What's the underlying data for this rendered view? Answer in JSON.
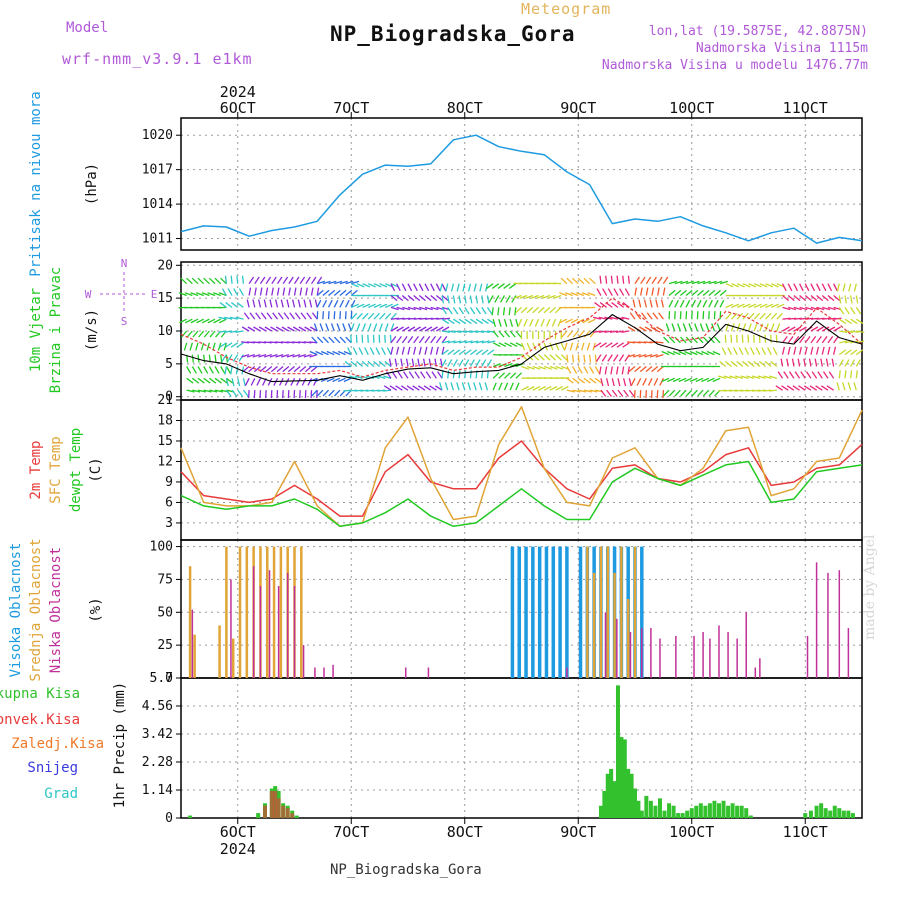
{
  "header": {
    "model_label": "Model",
    "model_value": "wrf-nmm_v3.9.1 e1km",
    "station_title": "NP_Biogradska_Gora",
    "meteogram_label": "Meteogram",
    "lonlat": "lon,lat (19.5875E, 42.8875N)",
    "altitude": "Nadmorska Visina 1115m",
    "model_altitude": "Nadmorska Visina u modelu 1476.77m"
  },
  "footer": {
    "station": "NP_Biogradska_Gora",
    "watermark": "made by Angel"
  },
  "colors": {
    "pressure": "#1e9be0",
    "wind_speed": "#000000",
    "wind_gust": "#e83a3a",
    "temp_2m": "#e83a3a",
    "temp_sfc": "#e0a437",
    "dewpt": "#22c922",
    "cloud_high": "#1e9be0",
    "cloud_mid": "#e0a437",
    "cloud_low": "#c0309a",
    "precip_total": "#33c12e",
    "precip_conv": "#e83a3a",
    "precip_frozen": "#f07a2a",
    "precip_snow": "#3a3ae0",
    "precip_graupel": "#2ec6c6",
    "violet_text": "#b05ad8"
  },
  "chart_data": [
    {
      "type": "line",
      "panel": "pressure",
      "ylabel_colored": "Pritisak na nivou mora",
      "unit": "(hPa)",
      "ylim": [
        1010,
        1021.5
      ],
      "yticks": [
        1011,
        1014,
        1017,
        1020
      ],
      "x_day": [
        5.5,
        5.7,
        5.9,
        6.1,
        6.3,
        6.5,
        6.7,
        6.9,
        7.1,
        7.3,
        7.5,
        7.7,
        7.9,
        8.1,
        8.3,
        8.5,
        8.7,
        8.9,
        9.1,
        9.3,
        9.5,
        9.7,
        9.9,
        10.1,
        10.3,
        10.5,
        10.7,
        10.9,
        11.1,
        11.3,
        11.5
      ],
      "values": [
        1011.6,
        1012.1,
        1012.0,
        1011.2,
        1011.7,
        1012.0,
        1012.5,
        1014.8,
        1016.6,
        1017.4,
        1017.3,
        1017.5,
        1019.6,
        1020.0,
        1019.0,
        1018.6,
        1018.3,
        1016.8,
        1015.7,
        1012.3,
        1012.7,
        1012.5,
        1012.9,
        1012.1,
        1011.5,
        1010.8,
        1011.5,
        1011.9,
        1010.6,
        1011.1,
        1010.8
      ]
    },
    {
      "type": "line",
      "panel": "wind",
      "ylabel_colored": "10m Vjetar Brzina i Pravac",
      "unit": "(m/s)",
      "compass": "N E S W",
      "ylim": [
        -0.5,
        20.5
      ],
      "yticks": [
        0,
        5,
        10,
        15,
        20
      ],
      "x_day": [
        5.5,
        5.7,
        5.9,
        6.1,
        6.3,
        6.5,
        6.7,
        6.9,
        7.1,
        7.3,
        7.5,
        7.7,
        7.9,
        8.1,
        8.3,
        8.5,
        8.7,
        8.9,
        9.1,
        9.3,
        9.5,
        9.7,
        9.9,
        10.1,
        10.3,
        10.5,
        10.7,
        10.9,
        11.1,
        11.3,
        11.5
      ],
      "series": [
        {
          "name": "speed",
          "values": [
            6.5,
            5.5,
            5.0,
            3.5,
            2.3,
            2.4,
            2.5,
            3.2,
            2.5,
            3.5,
            4.2,
            4.4,
            3.5,
            3.8,
            4.0,
            5.0,
            7.5,
            8.5,
            9.5,
            12.5,
            10.5,
            8.0,
            7.0,
            7.5,
            11.0,
            10.0,
            8.5,
            8.0,
            11.5,
            9.0,
            8.0
          ]
        },
        {
          "name": "gust",
          "values": [
            9.5,
            8.0,
            6.0,
            4.5,
            3.5,
            3.5,
            3.5,
            4.0,
            3.0,
            4.0,
            4.5,
            5.0,
            4.0,
            4.5,
            4.5,
            6.0,
            8.5,
            10.5,
            12.0,
            15.0,
            13.0,
            10.0,
            8.5,
            9.0,
            13.0,
            12.0,
            10.0,
            9.5,
            13.5,
            11.0,
            8.0
          ]
        }
      ],
      "direction_bands": [
        {
          "from": 5.55,
          "to": 5.9,
          "color": "#22c922"
        },
        {
          "from": 5.9,
          "to": 6.1,
          "color": "#2ec6c6"
        },
        {
          "from": 6.1,
          "to": 6.7,
          "color": "#8b2ad8"
        },
        {
          "from": 6.7,
          "to": 7.0,
          "color": "#2a6ae0"
        },
        {
          "from": 7.0,
          "to": 7.35,
          "color": "#2ec6c6"
        },
        {
          "from": 7.35,
          "to": 7.8,
          "color": "#8b2ad8"
        },
        {
          "from": 7.8,
          "to": 8.25,
          "color": "#2ec6c6"
        },
        {
          "from": 8.25,
          "to": 8.5,
          "color": "#22c922"
        },
        {
          "from": 8.5,
          "to": 8.9,
          "color": "#c8d82a"
        },
        {
          "from": 8.9,
          "to": 9.2,
          "color": "#f0b22a"
        },
        {
          "from": 9.2,
          "to": 9.5,
          "color": "#e8287a"
        },
        {
          "from": 9.5,
          "to": 9.8,
          "color": "#f05a2a"
        },
        {
          "from": 9.8,
          "to": 10.3,
          "color": "#22c922"
        },
        {
          "from": 10.3,
          "to": 10.8,
          "color": "#c8d82a"
        },
        {
          "from": 10.8,
          "to": 11.3,
          "color": "#e8287a"
        },
        {
          "from": 11.3,
          "to": 11.5,
          "color": "#c8d82a"
        }
      ]
    },
    {
      "type": "line",
      "panel": "temperature",
      "ylabel_colored": [
        "2m Temp",
        "SFC Temp",
        "dewpt Temp"
      ],
      "unit": "(C)",
      "ylim": [
        0.5,
        21
      ],
      "yticks": [
        3,
        6,
        9,
        12,
        15,
        18,
        21
      ],
      "x_day": [
        5.5,
        5.7,
        5.9,
        6.1,
        6.3,
        6.5,
        6.7,
        6.9,
        7.1,
        7.3,
        7.5,
        7.7,
        7.9,
        8.1,
        8.3,
        8.5,
        8.7,
        8.9,
        9.1,
        9.3,
        9.5,
        9.7,
        9.9,
        10.1,
        10.3,
        10.5,
        10.7,
        10.9,
        11.1,
        11.3,
        11.5
      ],
      "series": [
        {
          "name": "2m Temp",
          "values": [
            10.5,
            7.0,
            6.5,
            6.0,
            6.5,
            8.5,
            6.5,
            4.0,
            4.0,
            10.5,
            13.0,
            9.0,
            8.0,
            8.0,
            12.5,
            15.0,
            11.0,
            8.0,
            6.5,
            11.0,
            11.5,
            9.5,
            9.0,
            10.5,
            13.0,
            14.0,
            8.5,
            9.0,
            11.0,
            11.5,
            14.5
          ]
        },
        {
          "name": "SFC Temp",
          "values": [
            14.0,
            6.0,
            5.5,
            5.5,
            6.0,
            12.0,
            5.5,
            2.5,
            3.0,
            14.0,
            18.5,
            9.5,
            3.5,
            4.0,
            14.5,
            20.0,
            11.0,
            6.0,
            5.5,
            12.5,
            14.0,
            9.5,
            8.5,
            11.0,
            16.5,
            17.0,
            7.0,
            8.0,
            12.0,
            12.5,
            19.5
          ]
        },
        {
          "name": "dewpt Temp",
          "values": [
            7.0,
            5.5,
            5.0,
            5.5,
            5.5,
            6.5,
            5.0,
            2.5,
            3.0,
            4.5,
            6.5,
            4.0,
            2.5,
            3.0,
            5.5,
            8.0,
            5.5,
            3.5,
            3.5,
            9.0,
            11.0,
            9.5,
            8.5,
            10.0,
            11.5,
            12.0,
            6.0,
            6.5,
            10.5,
            11.0,
            11.5
          ]
        }
      ]
    },
    {
      "type": "bar",
      "panel": "cloud_cover",
      "ylabel_colored": [
        "Visoka Oblacnost",
        "Srednja Oblacnost",
        "Niska Oblacnost"
      ],
      "unit": "(%)",
      "ylim": [
        0,
        105
      ],
      "yticks": [
        0,
        25,
        50,
        75,
        100
      ],
      "series": [
        {
          "name": "Visoka Oblacnost",
          "x_day": [
            8.42,
            8.48,
            8.54,
            8.6,
            8.66,
            8.72,
            8.78,
            8.84,
            8.9,
            9.02,
            9.08,
            9.14,
            9.2,
            9.26,
            9.32,
            9.38,
            9.44,
            9.5,
            9.56
          ],
          "values": [
            100,
            100,
            100,
            100,
            100,
            100,
            100,
            100,
            100,
            100,
            100,
            100,
            100,
            100,
            100,
            100,
            100,
            100,
            100
          ]
        },
        {
          "name": "Srednja Oblacnost",
          "x_day": [
            5.58,
            5.62,
            5.84,
            5.9,
            5.96,
            6.02,
            6.08,
            6.14,
            6.2,
            6.26,
            6.32,
            6.38,
            6.44,
            6.5,
            6.56,
            9.08,
            9.14,
            9.2,
            9.26,
            9.32,
            9.38,
            9.44,
            9.5
          ],
          "values": [
            85,
            33,
            40,
            100,
            30,
            100,
            100,
            100,
            100,
            100,
            100,
            100,
            100,
            100,
            100,
            100,
            80,
            100,
            100,
            80,
            100,
            60,
            100
          ]
        },
        {
          "name": "Niska Oblacnost",
          "x_day": [
            5.6,
            5.94,
            6.14,
            6.2,
            6.28,
            6.36,
            6.44,
            6.5,
            6.58,
            6.68,
            6.76,
            6.84,
            7.48,
            7.68,
            8.9,
            9.24,
            9.34,
            9.46,
            9.56,
            9.64,
            9.72,
            9.86,
            10.02,
            10.1,
            10.16,
            10.24,
            10.32,
            10.4,
            10.48,
            10.56,
            10.6,
            11.02,
            11.1,
            11.2,
            11.3,
            11.38
          ],
          "values": [
            52,
            75,
            85,
            70,
            82,
            70,
            80,
            70,
            25,
            8,
            8,
            10,
            8,
            8,
            8,
            50,
            45,
            35,
            38,
            38,
            30,
            32,
            32,
            35,
            30,
            40,
            35,
            30,
            50,
            8,
            15,
            32,
            88,
            80,
            82,
            38
          ]
        }
      ]
    },
    {
      "type": "bar",
      "panel": "precipitation",
      "ylabel_colored": [
        "Ukupna Kisa",
        "Konvek.Kisa",
        "Zaledj.Kisa",
        "Snijeg",
        "Grad"
      ],
      "unit": "1hr Precip (mm)",
      "ylim": [
        0,
        5.7
      ],
      "yticks": [
        0,
        1.14,
        2.28,
        3.42,
        4.56,
        5.7
      ],
      "series": [
        {
          "name": "Ukupna Kisa",
          "x_day": [
            5.58,
            6.18,
            6.24,
            6.3,
            6.33,
            6.36,
            6.4,
            6.44,
            6.48,
            6.52,
            9.2,
            9.23,
            9.26,
            9.29,
            9.32,
            9.35,
            9.38,
            9.41,
            9.44,
            9.47,
            9.5,
            9.53,
            9.56,
            9.6,
            9.64,
            9.68,
            9.72,
            9.76,
            9.8,
            9.84,
            9.88,
            9.92,
            9.96,
            10.0,
            10.04,
            10.08,
            10.12,
            10.16,
            10.2,
            10.24,
            10.28,
            10.32,
            10.36,
            10.4,
            10.44,
            10.48,
            10.52,
            11.0,
            11.05,
            11.1,
            11.14,
            11.18,
            11.22,
            11.26,
            11.3,
            11.34,
            11.38,
            11.42
          ],
          "values": [
            0.1,
            0.2,
            0.6,
            1.2,
            1.3,
            1.1,
            0.6,
            0.5,
            0.3,
            0.1,
            0.5,
            1.1,
            1.8,
            2.0,
            1.5,
            5.4,
            3.3,
            3.2,
            2.0,
            1.8,
            1.2,
            0.7,
            0.3,
            0.9,
            0.7,
            0.5,
            0.8,
            0.3,
            0.6,
            0.5,
            0.2,
            0.2,
            0.3,
            0.4,
            0.5,
            0.6,
            0.5,
            0.6,
            0.7,
            0.6,
            0.7,
            0.5,
            0.6,
            0.5,
            0.5,
            0.4,
            0.1,
            0.2,
            0.3,
            0.5,
            0.6,
            0.4,
            0.3,
            0.5,
            0.4,
            0.3,
            0.3,
            0.2
          ]
        },
        {
          "name": "Konvek.Kisa",
          "x_day": [
            6.24,
            6.3,
            6.33,
            6.36,
            6.4,
            6.44,
            6.48
          ],
          "values": [
            0.5,
            1.1,
            1.1,
            0.8,
            0.5,
            0.4,
            0.2
          ]
        }
      ]
    }
  ],
  "axes": {
    "x_min": 5.5,
    "x_max": 11.5,
    "date_ticks": [
      {
        "day": 6,
        "label": "6OCT"
      },
      {
        "day": 7,
        "label": "7OCT"
      },
      {
        "day": 8,
        "label": "8OCT"
      },
      {
        "day": 9,
        "label": "9OCT"
      },
      {
        "day": 10,
        "label": "10OCT"
      },
      {
        "day": 11,
        "label": "11OCT"
      }
    ],
    "year": "2024"
  }
}
